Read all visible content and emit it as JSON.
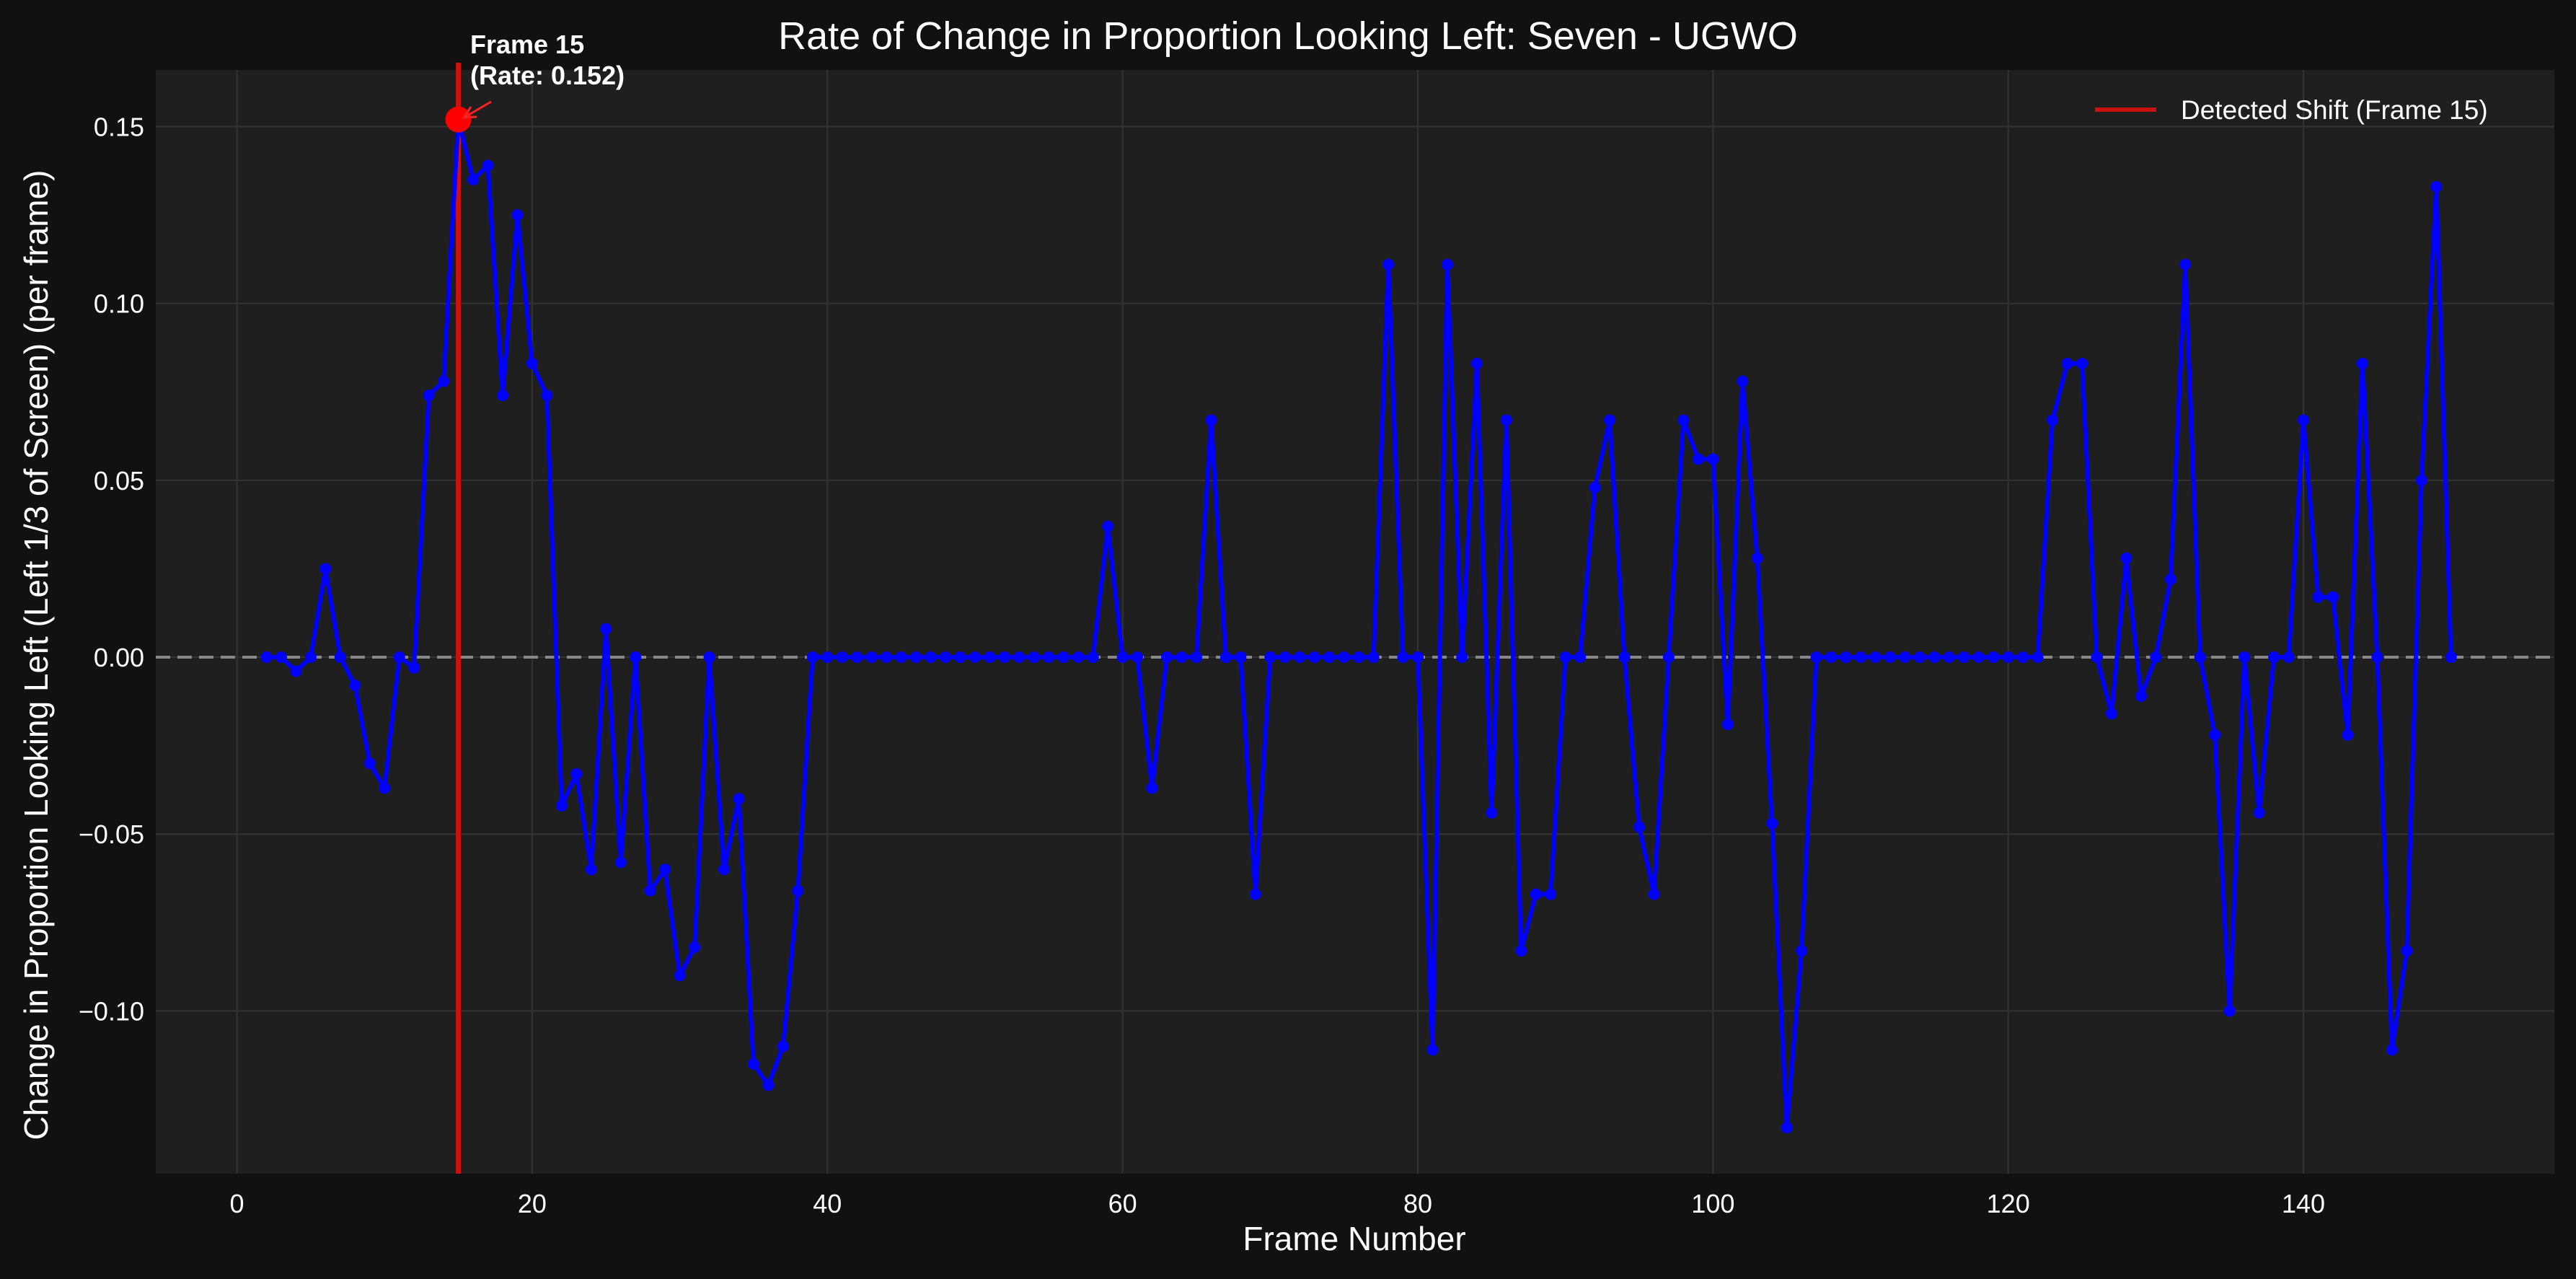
{
  "chart_data": {
    "type": "line",
    "title": "Rate of Change in Proportion Looking Left: Seven - UGWO",
    "xlabel": "Frame Number",
    "ylabel": "Change in Proportion Looking Left (Left 1/3 of Screen) (per frame)",
    "xlim": [
      -5.5,
      157
    ],
    "ylim": [
      -0.146,
      0.166
    ],
    "xticks": [
      0,
      20,
      40,
      60,
      80,
      100,
      120,
      140
    ],
    "yticks": [
      0.15,
      0.1,
      0.05,
      0.0,
      -0.05,
      -0.1
    ],
    "ytick_labels": [
      "0.15",
      "0.10",
      "0.05",
      "0.00",
      "−0.05",
      "−0.10"
    ],
    "grid": true,
    "legend_position": "top-right",
    "series": [
      {
        "color": "#0000ff",
        "x": [
          2,
          3,
          4,
          5,
          6,
          7,
          8,
          9,
          10,
          11,
          12,
          13,
          14,
          15,
          16,
          17,
          18,
          19,
          20,
          21,
          22,
          23,
          24,
          25,
          26,
          27,
          28,
          29,
          30,
          31,
          32,
          33,
          34,
          35,
          36,
          37,
          38,
          39,
          40,
          41,
          42,
          43,
          44,
          45,
          46,
          47,
          48,
          49,
          50,
          51,
          52,
          53,
          54,
          55,
          56,
          57,
          58,
          59,
          60,
          61,
          62,
          63,
          64,
          65,
          66,
          67,
          68,
          69,
          70,
          71,
          72,
          73,
          74,
          75,
          76,
          77,
          78,
          79,
          80,
          81,
          82,
          83,
          84,
          85,
          86,
          87,
          88,
          89,
          90,
          91,
          92,
          93,
          94,
          95,
          96,
          97,
          98,
          99,
          100,
          101,
          102,
          103,
          104,
          105,
          106,
          107,
          108,
          109,
          110,
          111,
          112,
          113,
          114,
          115,
          116,
          117,
          118,
          119,
          120,
          121,
          122,
          123,
          124,
          125,
          126,
          127,
          128,
          129,
          130,
          131,
          132,
          133,
          134,
          135,
          136,
          137,
          138,
          139,
          140,
          141,
          142,
          143,
          144,
          145,
          146,
          147,
          148,
          149,
          150
        ],
        "y": [
          0.0,
          0.0,
          -0.004,
          0.0,
          0.025,
          0.0,
          -0.008,
          -0.03,
          -0.037,
          0.0,
          -0.003,
          0.074,
          0.078,
          0.152,
          0.135,
          0.139,
          0.074,
          0.125,
          0.083,
          0.074,
          -0.042,
          -0.033,
          -0.06,
          0.008,
          -0.058,
          0.0,
          -0.066,
          -0.06,
          -0.09,
          -0.082,
          0.0,
          -0.06,
          -0.04,
          -0.115,
          -0.121,
          -0.11,
          -0.066,
          0.0,
          0.0,
          0.0,
          0.0,
          0.0,
          0.0,
          0.0,
          0.0,
          0.0,
          0.0,
          0.0,
          0.0,
          0.0,
          0.0,
          0.0,
          0.0,
          0.0,
          0.0,
          0.0,
          0.0,
          0.037,
          0.0,
          0.0,
          -0.037,
          0.0,
          0.0,
          0.0,
          0.067,
          0.0,
          0.0,
          -0.067,
          0.0,
          0.0,
          0.0,
          0.0,
          0.0,
          0.0,
          0.0,
          0.0,
          0.111,
          0.0,
          0.0,
          -0.111,
          0.111,
          0.0,
          0.083,
          -0.044,
          0.067,
          -0.083,
          -0.067,
          -0.067,
          0.0,
          0.0,
          0.048,
          0.067,
          0.0,
          -0.048,
          -0.067,
          0.0,
          0.067,
          0.056,
          0.056,
          -0.019,
          0.078,
          0.028,
          -0.047,
          -0.133,
          -0.083,
          0.0,
          0.0,
          0.0,
          0.0,
          0.0,
          0.0,
          0.0,
          0.0,
          0.0,
          0.0,
          0.0,
          0.0,
          0.0,
          0.0,
          0.0,
          0.0,
          0.067,
          0.083,
          0.083,
          0.0,
          -0.016,
          0.028,
          -0.011,
          0.0,
          0.022,
          0.111,
          0.0,
          -0.022,
          -0.1,
          0.0,
          -0.044,
          0.0,
          0.0,
          0.067,
          0.017,
          0.017,
          -0.022,
          0.083,
          0.0,
          -0.111,
          -0.083,
          0.05,
          0.133,
          0.0
        ]
      }
    ],
    "zero_line": {
      "y": 0,
      "color": "#888888",
      "style": "dashed"
    },
    "detected_shift": {
      "x": 15,
      "y": 0.152,
      "color": "#cc1111",
      "marker_color": "#ff0000",
      "legend_label": "Detected Shift (Frame 15)",
      "annotation_line1": "Frame 15",
      "annotation_line2": "(Rate: 0.152)"
    },
    "colors": {
      "figure_bg": "#111111",
      "axes_bg": "#1f1f1f",
      "grid": "#333333",
      "text": "#ffffff"
    }
  }
}
